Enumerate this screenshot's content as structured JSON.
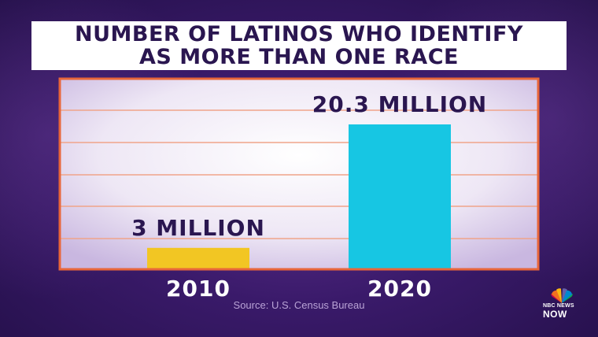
{
  "title": {
    "line1": "NUMBER OF LATINOS WHO IDENTIFY",
    "line2": "AS MORE THAN ONE RACE"
  },
  "source": "Source: U.S. Census Bureau",
  "logo": {
    "line1": "NBC NEWS",
    "line2": "NOW"
  },
  "colors": {
    "background": "#3a1a6a",
    "title_text": "#2a1650",
    "frame": "#e8663a",
    "gridline": "#f0a48a",
    "bar_2010": "#f2c623",
    "bar_2020": "#17c6e3",
    "label_text": "#2a1650"
  },
  "chart_data": {
    "type": "bar",
    "title": "NUMBER OF LATINOS WHO IDENTIFY AS MORE THAN ONE RACE",
    "categories": [
      "2010",
      "2020"
    ],
    "values": [
      3,
      20.3
    ],
    "unit": "million",
    "data_labels": [
      "3 MILLION",
      "20.3 MILLION"
    ],
    "bar_colors": [
      "#f2c623",
      "#17c6e3"
    ],
    "xlabel": "",
    "ylabel": "",
    "ylim": [
      0,
      26.7
    ],
    "grid": true,
    "legend": "none"
  }
}
